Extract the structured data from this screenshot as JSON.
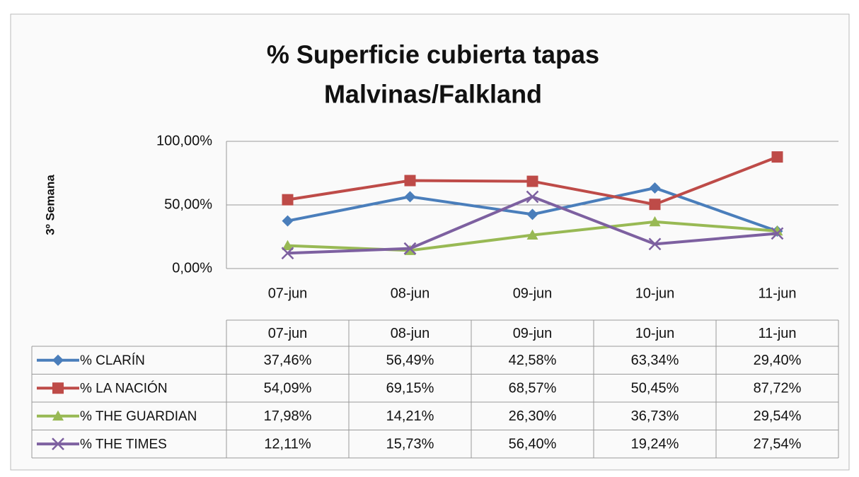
{
  "chart_data": {
    "type": "line",
    "title": [
      "% Superficie cubierta tapas",
      "Malvinas/Falkland"
    ],
    "y_label": "3º Semana",
    "categories": [
      "07-jun",
      "08-jun",
      "09-jun",
      "10-jun",
      "11-jun"
    ],
    "ylim": [
      0,
      100
    ],
    "yticks": [
      {
        "value": 0,
        "label": "0,00%"
      },
      {
        "value": 50,
        "label": "50,00%"
      },
      {
        "value": 100,
        "label": "100,00%"
      }
    ],
    "grid": true,
    "legend": "data-table",
    "series": [
      {
        "name": "% CLARÍN",
        "color": "#4a7ebb",
        "marker": "diamond",
        "values": [
          37.46,
          56.49,
          42.58,
          63.34,
          29.4
        ],
        "value_labels": [
          "37,46%",
          "56,49%",
          "42,58%",
          "63,34%",
          "29,40%"
        ]
      },
      {
        "name": "% LA NACIÓN",
        "color": "#be4b48",
        "marker": "square",
        "values": [
          54.09,
          69.15,
          68.57,
          50.45,
          87.72
        ],
        "value_labels": [
          "54,09%",
          "69,15%",
          "68,57%",
          "50,45%",
          "87,72%"
        ]
      },
      {
        "name": "% THE GUARDIAN",
        "color": "#98b954",
        "marker": "triangle",
        "values": [
          17.98,
          14.21,
          26.3,
          36.73,
          29.54
        ],
        "value_labels": [
          "17,98%",
          "14,21%",
          "26,30%",
          "36,73%",
          "29,54%"
        ]
      },
      {
        "name": "% THE TIMES",
        "color": "#7d60a0",
        "marker": "x",
        "values": [
          12.11,
          15.73,
          56.4,
          19.24,
          27.54
        ],
        "value_labels": [
          "12,11%",
          "15,73%",
          "56,40%",
          "19,24%",
          "27,54%"
        ]
      }
    ]
  }
}
